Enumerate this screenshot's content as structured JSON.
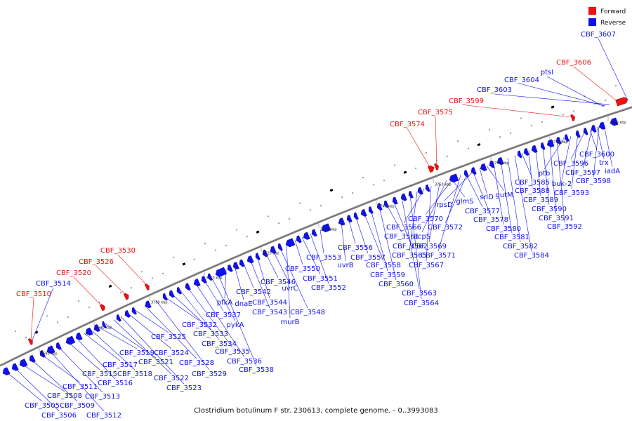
{
  "caption": "Clostridium botulinum F str. 230613, complete genome. - 0..3993083",
  "legend": [
    {
      "label": "Forward",
      "color": "#ee1111"
    },
    {
      "label": "Reverse",
      "color": "#1111ee"
    }
  ],
  "colors": {
    "forward": "#ee1111",
    "reverse": "#1111ee",
    "backbone": "#777777"
  },
  "ticks": [
    "3680 kbp",
    "3690 kbp",
    "3700 kbp",
    "3710 kbp",
    "3720 kbp",
    "3730 kbp",
    "3740 kbp",
    "3750 kbp",
    "3760 kbp",
    "3770 kbp",
    "3780 kbp"
  ],
  "forward_labels": [
    "CBF_3510",
    "CBF_3520",
    "CBF_3526",
    "CBF_3530",
    "CBF_3574",
    "CBF_3575",
    "CBF_3599",
    "CBF_3606"
  ],
  "reverse_top_labels": [
    "CBF_3514",
    "ptsI",
    "CBF_3604",
    "CBF_3603",
    "CBF_3607"
  ],
  "reverse_labels": [
    "CBF_3505",
    "CBF_3506",
    "CBF_3508",
    "CBF_3509",
    "CBF_3511",
    "CBF_3512",
    "CBF_3513",
    "CBF_3515",
    "CBF_3516",
    "CBF_3517",
    "CBF_3518",
    "CBF_3519",
    "CBF_3521",
    "CBF_3522",
    "CBF_3523",
    "CBF_3524",
    "CBF_3525",
    "CBF_3528",
    "CBF_3529",
    "CBF_3532",
    "CBF_3533",
    "CBF_3534",
    "CBF_3535",
    "CBF_3536",
    "CBF_3537",
    "pykA",
    "CBF_3538",
    "pfkA",
    "dnaE",
    "CBF_3542",
    "CBF_3543",
    "CBF_3544",
    "CBF_3546",
    "uvrC",
    "CBF_3548",
    "murB",
    "CBF_3550",
    "CBF_3551",
    "CBF_3552",
    "CBF_3553",
    "uvrB",
    "CBF_3556",
    "CBF_3557",
    "CBF_3558",
    "CBF_3559",
    "CBF_3560",
    "CBF_3561",
    "CBF_3562",
    "CBF_3563",
    "CBF_3564",
    "CBF_3565",
    "CBF_3566",
    "CBF_3567",
    "CBF_3569",
    "acpS",
    "CBF_3570",
    "CBF_3571",
    "CBF_3572",
    "rpsD",
    "glmS",
    "CBF_3577",
    "CBF_3578",
    "srlD",
    "gutM",
    "CBF_3580",
    "CBF_3581",
    "CBF_3582",
    "CBF_3584",
    "CBF_3585",
    "CBF_3588",
    "CBF_3589",
    "CBF_3590",
    "CBF_3591",
    "CBF_3592",
    "ptb",
    "buk-2",
    "CBF_3593",
    "CBF_3596",
    "CBF_3597",
    "CBF_3598",
    "CBF_3600",
    "trx",
    "iadA"
  ]
}
